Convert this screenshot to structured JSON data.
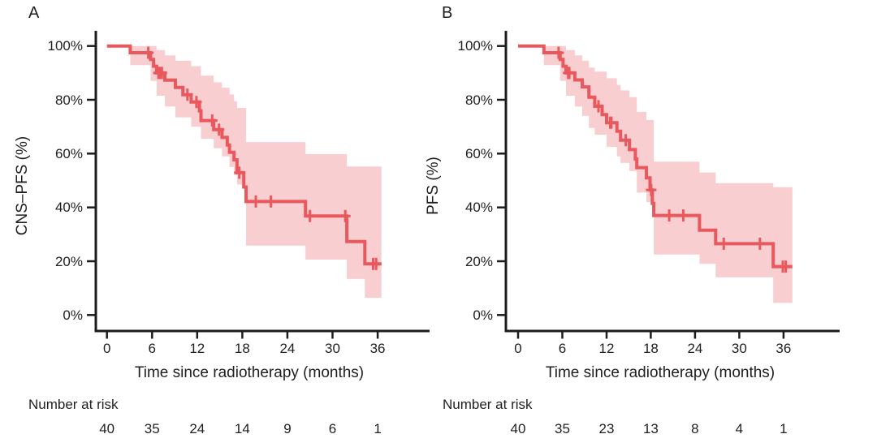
{
  "figure": {
    "panels": [
      {
        "panel_letter": "A",
        "y_axis_label": "CNS–PFS (%)",
        "x_axis_label": "Time since radiotherapy (months)",
        "risk_label": "Number at risk"
      },
      {
        "panel_letter": "B",
        "y_axis_label": "PFS (%)",
        "x_axis_label": "Time since radiotherapy (months)",
        "risk_label": "Number at risk"
      }
    ]
  },
  "colors": {
    "curve_red": "#e8585c",
    "band_pink": "#f9ced1",
    "axis_black": "#1c1c1c",
    "text": "#1f1f1f",
    "background": "#ffffff"
  },
  "chart_data": [
    {
      "type": "line",
      "subtype": "kaplan-meier-step",
      "title": "A",
      "ylabel": "CNS–PFS (%)",
      "xlabel": "Time since radiotherapy (months)",
      "xlim": [
        0,
        39
      ],
      "ylim": [
        0,
        100
      ],
      "grid": false,
      "legend": "none",
      "x_ticks": [
        0,
        6,
        12,
        18,
        24,
        30,
        36
      ],
      "y_ticks": [
        [
          100,
          "100%"
        ],
        [
          80,
          "80%"
        ],
        [
          60,
          "60%"
        ],
        [
          40,
          "40%"
        ],
        [
          20,
          "20%"
        ],
        [
          0,
          "0%"
        ]
      ],
      "end_time": 36.5,
      "steps": [
        [
          0,
          100
        ],
        [
          3.1,
          97.5
        ],
        [
          5.8,
          95
        ],
        [
          6.2,
          92.5
        ],
        [
          6.6,
          90
        ],
        [
          7.7,
          87.3
        ],
        [
          9.1,
          84.6
        ],
        [
          10.1,
          81.9
        ],
        [
          11.2,
          79.2
        ],
        [
          12.3,
          75.9
        ],
        [
          12.5,
          72.3
        ],
        [
          14.2,
          68.9
        ],
        [
          15.3,
          66
        ],
        [
          16,
          63.2
        ],
        [
          16.3,
          60.5
        ],
        [
          16.9,
          57.7
        ],
        [
          17.3,
          52.9
        ],
        [
          18.2,
          47.6
        ],
        [
          18.5,
          42.2
        ],
        [
          26.4,
          36.8
        ],
        [
          31.9,
          27.3
        ],
        [
          34.3,
          19
        ]
      ],
      "censor_marks": [
        [
          5.5,
          97.5
        ],
        [
          6.85,
          90
        ],
        [
          7,
          90
        ],
        [
          7.15,
          90
        ],
        [
          7.3,
          90
        ],
        [
          10.7,
          81.9
        ],
        [
          11.9,
          79.2
        ],
        [
          14,
          72.3
        ],
        [
          14.9,
          68.9
        ],
        [
          17.6,
          52.9
        ],
        [
          19.8,
          42.2
        ],
        [
          21.8,
          42.2
        ],
        [
          27,
          36.8
        ],
        [
          31.7,
          36.8
        ],
        [
          35.4,
          19
        ],
        [
          35.8,
          19
        ]
      ],
      "confidence_band": [
        [
          3.1,
          100,
          92.9
        ],
        [
          5.8,
          100,
          87
        ],
        [
          6.6,
          98.5,
          81.5
        ],
        [
          7.7,
          96.5,
          77.5
        ],
        [
          9.1,
          94.5,
          73.5
        ],
        [
          11.2,
          92.5,
          70
        ],
        [
          12.5,
          89,
          65.5
        ],
        [
          14.2,
          86.5,
          62
        ],
        [
          15.3,
          84.5,
          59
        ],
        [
          16.3,
          82,
          55
        ],
        [
          16.9,
          79.5,
          52
        ],
        [
          17.3,
          77,
          48.5
        ],
        [
          18.5,
          64.3,
          25.8
        ],
        [
          26.4,
          59.8,
          20.6
        ],
        [
          31.9,
          55.2,
          13.4
        ],
        [
          34.3,
          55.2,
          6.4
        ]
      ],
      "number_at_risk": {
        "label": "Number at risk",
        "times": [
          0,
          6,
          12,
          18,
          24,
          30,
          36
        ],
        "values": [
          "40",
          "35",
          "24",
          "14",
          "9",
          "6",
          "1"
        ]
      }
    },
    {
      "type": "line",
      "subtype": "kaplan-meier-step",
      "title": "B",
      "ylabel": "PFS (%)",
      "xlabel": "Time since radiotherapy (months)",
      "xlim": [
        0,
        39
      ],
      "ylim": [
        0,
        100
      ],
      "grid": false,
      "legend": "none",
      "x_ticks": [
        0,
        6,
        12,
        18,
        24,
        30,
        36
      ],
      "y_ticks": [
        [
          100,
          "100%"
        ],
        [
          80,
          "80%"
        ],
        [
          60,
          "60%"
        ],
        [
          40,
          "40%"
        ],
        [
          20,
          "20%"
        ],
        [
          0,
          "0%"
        ]
      ],
      "end_time": 37.2,
      "steps": [
        [
          0,
          100
        ],
        [
          3.5,
          97.5
        ],
        [
          5.7,
          95
        ],
        [
          6.1,
          92.5
        ],
        [
          6.5,
          90
        ],
        [
          7.7,
          87.4
        ],
        [
          8.7,
          84.8
        ],
        [
          9.6,
          81
        ],
        [
          10.4,
          77.6
        ],
        [
          11.4,
          74.5
        ],
        [
          12,
          71.5
        ],
        [
          13.4,
          68.3
        ],
        [
          13.9,
          65
        ],
        [
          15.1,
          61.5
        ],
        [
          15.9,
          58
        ],
        [
          16.1,
          54.8
        ],
        [
          17.4,
          51
        ],
        [
          17.9,
          46.5
        ],
        [
          18.2,
          41.5
        ],
        [
          18.4,
          37
        ],
        [
          24.6,
          31.5
        ],
        [
          26.8,
          26.5
        ],
        [
          34.6,
          18
        ]
      ],
      "censor_marks": [
        [
          5.5,
          97.5
        ],
        [
          6.8,
          90
        ],
        [
          6.95,
          90
        ],
        [
          10.9,
          77.6
        ],
        [
          12.5,
          71.5
        ],
        [
          12.65,
          71.5
        ],
        [
          14.6,
          65
        ],
        [
          18.05,
          46.5
        ],
        [
          20.5,
          37
        ],
        [
          22.4,
          37
        ],
        [
          27.9,
          26.5
        ],
        [
          32.8,
          26.5
        ],
        [
          35.9,
          18
        ],
        [
          36.3,
          18
        ]
      ],
      "confidence_band": [
        [
          3.5,
          100,
          92.9
        ],
        [
          5.7,
          100,
          87
        ],
        [
          6.5,
          98.5,
          81.5
        ],
        [
          7.7,
          96.5,
          77.5
        ],
        [
          8.7,
          94.5,
          74
        ],
        [
          9.6,
          92,
          69.5
        ],
        [
          10.4,
          90.5,
          67
        ],
        [
          12,
          88,
          62.5
        ],
        [
          13.4,
          85.5,
          59
        ],
        [
          13.9,
          83.5,
          56.5
        ],
        [
          15.1,
          81,
          53.5
        ],
        [
          16.1,
          75.5,
          45.5
        ],
        [
          17.4,
          72.5,
          42
        ],
        [
          18.4,
          57,
          22.5
        ],
        [
          24.6,
          53,
          19
        ],
        [
          26.8,
          49,
          14
        ],
        [
          34.6,
          47.5,
          4.5
        ]
      ],
      "number_at_risk": {
        "label": "Number at risk",
        "times": [
          0,
          6,
          12,
          18,
          24,
          30,
          36
        ],
        "values": [
          "40",
          "35",
          "23",
          "13",
          "8",
          "4",
          "1"
        ]
      }
    }
  ]
}
